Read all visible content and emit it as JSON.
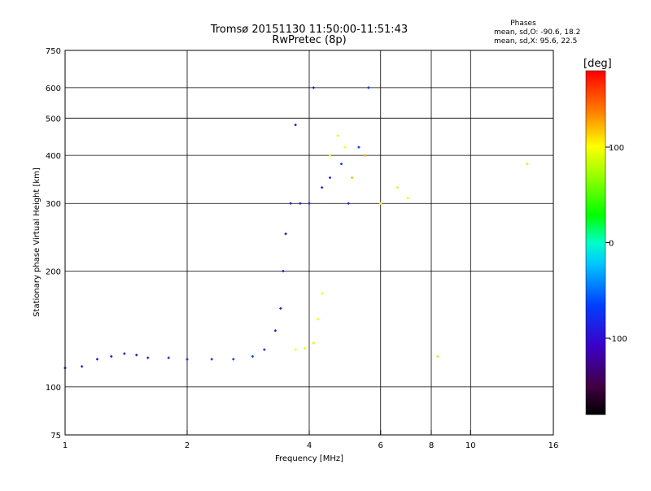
{
  "chart_data": {
    "type": "scatter",
    "title": "Tromsø 20151130 11:50:00-11:51:43",
    "subtitle": "RwPretec (8p)",
    "xlabel": "Frequency [MHz]",
    "ylabel": "Stationary phase Virtual Height [km]",
    "x_scale": "log",
    "y_scale": "log",
    "xlim": [
      1,
      16
    ],
    "ylim": [
      75,
      750
    ],
    "x_ticks": [
      1,
      2,
      4,
      6,
      8,
      10,
      16
    ],
    "y_ticks": [
      75,
      100,
      200,
      300,
      400,
      500,
      600,
      750
    ],
    "grid": true,
    "phases": {
      "title": "Phases",
      "line1": "mean, sd,O: -90.6, 18.2",
      "line2": "mean, sd,X:  95.6, 22.5"
    },
    "colorbar": {
      "label": "[deg]",
      "range": [
        -180,
        180
      ],
      "ticks": [
        100,
        0,
        -100
      ]
    },
    "series": [
      {
        "name": "O",
        "mean_phase": -90.6,
        "sd_phase": 18.2,
        "points": [
          [
            1.0,
            112,
            -100
          ],
          [
            1.1,
            113,
            -95
          ],
          [
            1.2,
            118,
            -100
          ],
          [
            1.3,
            120,
            -90
          ],
          [
            1.4,
            122,
            -100
          ],
          [
            1.5,
            121,
            -95
          ],
          [
            1.6,
            119,
            -100
          ],
          [
            1.8,
            119,
            -90
          ],
          [
            2.0,
            118,
            -85
          ],
          [
            2.3,
            118,
            -80
          ],
          [
            2.6,
            118,
            -70
          ],
          [
            2.9,
            120,
            -60
          ],
          [
            3.1,
            125,
            -80
          ],
          [
            3.3,
            140,
            -95
          ],
          [
            3.4,
            160,
            -100
          ],
          [
            3.45,
            200,
            -100
          ],
          [
            3.5,
            250,
            -105
          ],
          [
            3.6,
            300,
            -100
          ],
          [
            3.7,
            480,
            -100
          ],
          [
            3.8,
            300,
            -90
          ],
          [
            4.0,
            300,
            -95
          ],
          [
            4.1,
            600,
            -100
          ],
          [
            4.3,
            330,
            -85
          ],
          [
            4.5,
            350,
            -80
          ],
          [
            4.8,
            380,
            -70
          ],
          [
            5.0,
            300,
            -90
          ],
          [
            5.3,
            420,
            -75
          ],
          [
            5.6,
            600,
            -80
          ]
        ]
      },
      {
        "name": "X",
        "mean_phase": 95.6,
        "sd_phase": 22.5,
        "points": [
          [
            3.7,
            125,
            100
          ],
          [
            3.9,
            126,
            95
          ],
          [
            4.1,
            130,
            90
          ],
          [
            4.2,
            150,
            100
          ],
          [
            4.3,
            175,
            95
          ],
          [
            4.5,
            400,
            110
          ],
          [
            4.7,
            450,
            90
          ],
          [
            4.9,
            420,
            100
          ],
          [
            5.1,
            350,
            120
          ],
          [
            5.5,
            400,
            130
          ],
          [
            6.0,
            300,
            100
          ],
          [
            6.6,
            330,
            90
          ],
          [
            7.0,
            310,
            95
          ],
          [
            8.3,
            120,
            110
          ],
          [
            13.8,
            380,
            110
          ]
        ]
      }
    ]
  }
}
